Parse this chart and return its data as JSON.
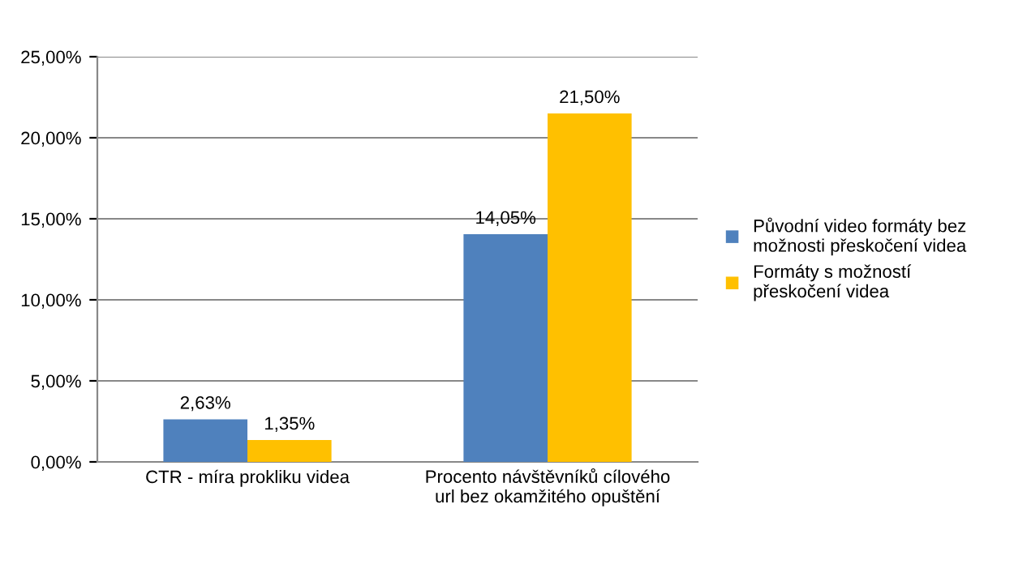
{
  "chart_data": {
    "type": "bar",
    "categories": [
      "CTR - míra prokliku videa",
      "Procento návštěvníků cílového\nurl bez okamžitého opuštění"
    ],
    "series": [
      {
        "name": "Původní video formáty bez\nmožnosti přeskočení videa",
        "color": "#4f81bd",
        "values": [
          2.63,
          14.05
        ],
        "value_labels": [
          "2,63%",
          "14,05%"
        ]
      },
      {
        "name": "Formáty s možností\npřeskočení videa",
        "color": "#ffc000",
        "values": [
          1.35,
          21.5
        ],
        "value_labels": [
          "1,35%",
          "21,50%"
        ]
      }
    ],
    "ylim": [
      0,
      25
    ],
    "yticks": [
      {
        "value": 0,
        "label": "0,00%"
      },
      {
        "value": 5,
        "label": "5,00%"
      },
      {
        "value": 10,
        "label": "10,00%"
      },
      {
        "value": 15,
        "label": "15,00%"
      },
      {
        "value": 20,
        "label": "20,00%"
      },
      {
        "value": 25,
        "label": "25,00%"
      }
    ],
    "grid": "y",
    "legend": "right"
  }
}
